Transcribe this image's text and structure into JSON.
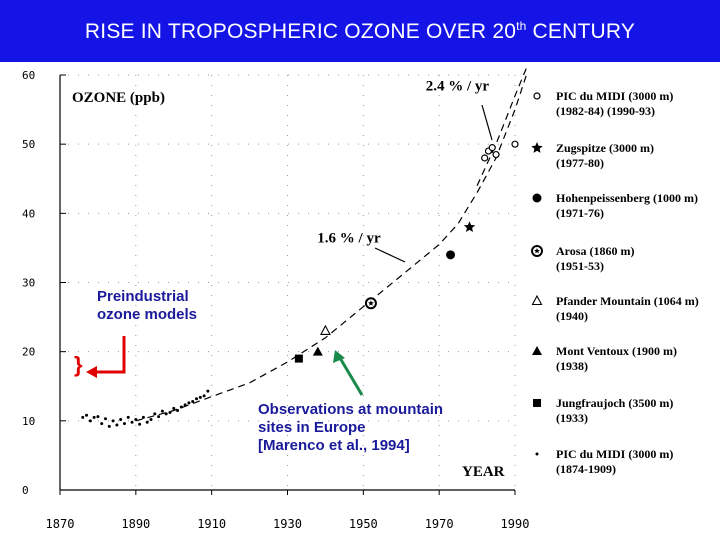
{
  "slide": {
    "title_main": "RISE IN TROPOSPHERIC OZONE OVER 20",
    "title_sup": "th",
    "title_end": " CENTURY",
    "banner_color": "#1414e6"
  },
  "annotations": {
    "preindustrial": "Preindustrial ozone models",
    "preindustrial_l1": "Preindustrial",
    "preindustrial_l2": "ozone models",
    "brace": "}",
    "obs_l1": "Observations at mountain",
    "obs_l2": "sites in Europe",
    "obs_l3": "[Marenco et al., 1994]",
    "arrow_color": "#1a8a4a",
    "bracket_color": "#e00000",
    "text_color": "#1a1a9a"
  },
  "chart_data": {
    "type": "scatter",
    "ylabel": "OZONE (ppb)",
    "xlabel": "YEAR",
    "xlim": [
      1870,
      1990
    ],
    "ylim": [
      0,
      60
    ],
    "xticks": [
      1870,
      1890,
      1910,
      1930,
      1950,
      1970,
      1990
    ],
    "xtick_labels": [
      "1870",
      "1890",
      "1910",
      "1930",
      "1950",
      "1970",
      "1990"
    ],
    "yticks": [
      0,
      10,
      20,
      30,
      40,
      50,
      60
    ],
    "ytick_labels": [
      "0",
      "10",
      "20",
      "30",
      "40",
      "50",
      "60"
    ],
    "rate_labels": [
      {
        "text": "2.4 % / yr",
        "x": 1977,
        "y": 58.5
      },
      {
        "text": "1.6 % / yr",
        "x": 1955,
        "y": 36.5
      }
    ],
    "series": [
      {
        "name": "PIC du MIDI (3000 m)",
        "period": "(1982-84)  (1990-93)",
        "marker": "open-circle",
        "points": [
          [
            1982,
            48
          ],
          [
            1983,
            49
          ],
          [
            1984,
            49.5
          ],
          [
            1985,
            48.5
          ],
          [
            1990,
            50
          ]
        ]
      },
      {
        "name": "Zugspitze (3000 m)",
        "period": "(1977-80)",
        "marker": "star",
        "points": [
          [
            1978,
            38
          ]
        ]
      },
      {
        "name": "Hohenpeissenberg (1000 m)",
        "period": "(1971-76)",
        "marker": "filled-circle",
        "points": [
          [
            1973,
            34
          ]
        ]
      },
      {
        "name": "Arosa (1860 m)",
        "period": "(1951-53)",
        "marker": "open-star",
        "points": [
          [
            1952,
            27
          ]
        ]
      },
      {
        "name": "Pfander Mountain (1064 m)",
        "period": "(1940)",
        "marker": "open-triangle",
        "points": [
          [
            1940,
            23
          ]
        ]
      },
      {
        "name": "Mont Ventoux (1900 m)",
        "period": "(1938)",
        "marker": "filled-triangle",
        "points": [
          [
            1938,
            20
          ]
        ]
      },
      {
        "name": "Jungfraujoch (3500 m)",
        "period": "(1933)",
        "marker": "filled-square",
        "points": [
          [
            1933,
            19
          ]
        ]
      },
      {
        "name": "PIC du MIDI (3000 m)",
        "period": "(1874-1909)",
        "marker": "dot",
        "points": [
          [
            1876,
            10.5
          ],
          [
            1877,
            10.8
          ],
          [
            1878,
            10
          ],
          [
            1879,
            10.5
          ],
          [
            1880,
            10.6
          ],
          [
            1881,
            9.6
          ],
          [
            1882,
            10.3
          ],
          [
            1883,
            9.2
          ],
          [
            1884,
            10
          ],
          [
            1885,
            9.4
          ],
          [
            1886,
            10.2
          ],
          [
            1887,
            9.6
          ],
          [
            1888,
            10.5
          ],
          [
            1889,
            9.8
          ],
          [
            1890,
            10.2
          ],
          [
            1891,
            9.5
          ],
          [
            1892,
            10.5
          ],
          [
            1893,
            9.8
          ],
          [
            1894,
            10.2
          ],
          [
            1895,
            11
          ],
          [
            1896,
            10.6
          ],
          [
            1897,
            11.4
          ],
          [
            1898,
            11
          ],
          [
            1899,
            11.2
          ],
          [
            1900,
            11.8
          ],
          [
            1901,
            11.5
          ],
          [
            1902,
            12
          ],
          [
            1903,
            12.3
          ],
          [
            1904,
            12.6
          ],
          [
            1905,
            12.8
          ],
          [
            1906,
            13.2
          ],
          [
            1907,
            13.4
          ],
          [
            1908,
            13.6
          ],
          [
            1909,
            14.3
          ]
        ]
      }
    ],
    "curve": [
      [
        1890,
        10
      ],
      [
        1900,
        11.5
      ],
      [
        1910,
        13.5
      ],
      [
        1920,
        15.5
      ],
      [
        1930,
        18.5
      ],
      [
        1940,
        22
      ],
      [
        1950,
        26.5
      ],
      [
        1960,
        31
      ],
      [
        1970,
        35.5
      ],
      [
        1975,
        38.5
      ],
      [
        1980,
        43
      ],
      [
        1985,
        48
      ],
      [
        1990,
        55
      ],
      [
        1993,
        60
      ]
    ],
    "curve2": [
      [
        1980,
        44
      ],
      [
        1985,
        50
      ],
      [
        1990,
        57
      ],
      [
        1993,
        61
      ]
    ]
  }
}
